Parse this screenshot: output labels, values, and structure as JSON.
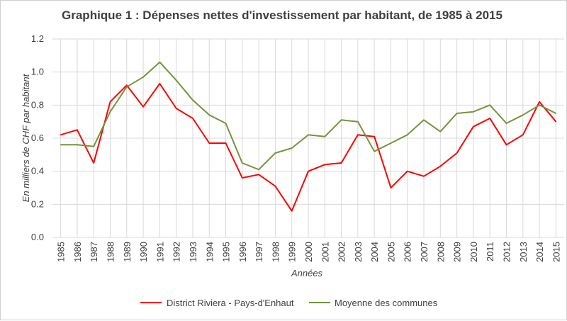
{
  "chart_data": {
    "type": "line",
    "title": "Graphique 1 : Dépenses nettes d'investissement par habitant, de 1985 à 2015",
    "xlabel": "Années",
    "ylabel": "En milliers de CHF par habitant",
    "ylim": [
      0,
      1.2
    ],
    "yticks": [
      "0.0",
      "0.2",
      "0.4",
      "0.6",
      "0.8",
      "1.0",
      "1.2"
    ],
    "grid": true,
    "legend_position": "bottom",
    "categories": [
      "1985",
      "1986",
      "1987",
      "1988",
      "1989",
      "1990",
      "1991",
      "1992",
      "1993",
      "1994",
      "1995",
      "1996",
      "1997",
      "1998",
      "1999",
      "2000",
      "2001",
      "2002",
      "2003",
      "2004",
      "2005",
      "2006",
      "2007",
      "2008",
      "2009",
      "2010",
      "2011",
      "2012",
      "2013",
      "2014",
      "2015"
    ],
    "series": [
      {
        "name": "District Riviera - Pays-d'Enhaut",
        "color": "#ff0000",
        "values": [
          0.62,
          0.65,
          0.45,
          0.82,
          0.92,
          0.79,
          0.93,
          0.78,
          0.72,
          0.57,
          0.57,
          0.36,
          0.38,
          0.31,
          0.16,
          0.4,
          0.44,
          0.45,
          0.62,
          0.61,
          0.3,
          0.4,
          0.37,
          0.43,
          0.51,
          0.67,
          0.72,
          0.56,
          0.62,
          0.82,
          0.7
        ]
      },
      {
        "name": "Moyenne des communes",
        "color": "#77933c",
        "values": [
          0.56,
          0.56,
          0.55,
          0.76,
          0.91,
          0.97,
          1.06,
          0.95,
          0.83,
          0.74,
          0.69,
          0.45,
          0.41,
          0.51,
          0.54,
          0.62,
          0.61,
          0.71,
          0.7,
          0.52,
          0.57,
          0.62,
          0.71,
          0.64,
          0.75,
          0.76,
          0.8,
          0.69,
          0.74,
          0.8,
          0.75
        ]
      }
    ]
  }
}
